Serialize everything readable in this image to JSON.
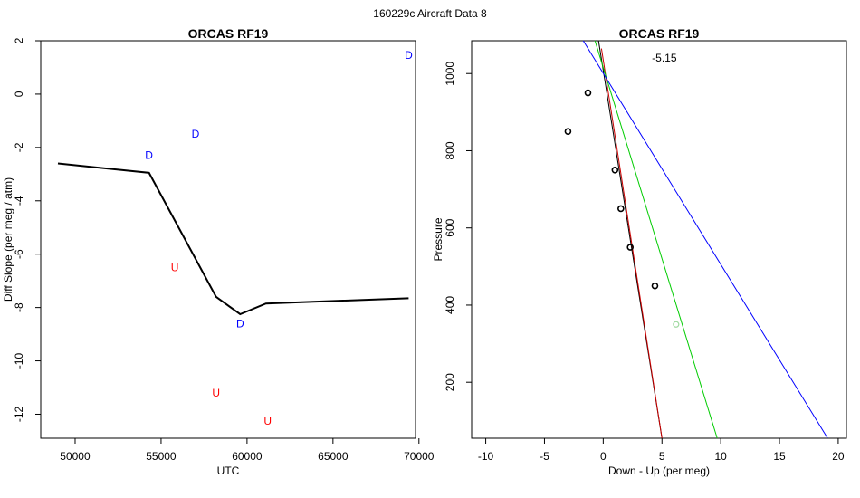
{
  "suptitle": "160229c   Aircraft Data 8",
  "chart_data": [
    {
      "type": "line",
      "title": "ORCAS RF19",
      "xlabel": "UTC",
      "ylabel": "Diff Slope (per meg / atm)",
      "xlim": [
        48000,
        69800
      ],
      "ylim": [
        -12.9,
        2.0
      ],
      "x_ticks": [
        50000,
        55000,
        60000,
        65000,
        70000
      ],
      "y_ticks": [
        2,
        0,
        -2,
        -4,
        -6,
        -8,
        -10,
        -12
      ],
      "series": [
        {
          "name": "diff-slope-line",
          "color": "#000000",
          "x": [
            49000,
            54300,
            58200,
            59600,
            61100,
            69400
          ],
          "y": [
            -2.6,
            -2.95,
            -7.6,
            -8.25,
            -7.85,
            -7.65
          ]
        }
      ],
      "labels": [
        {
          "text": "D",
          "x": 54300,
          "y": -2.3,
          "color": "#0000ff"
        },
        {
          "text": "D",
          "x": 57000,
          "y": -1.5,
          "color": "#0000ff"
        },
        {
          "text": "D",
          "x": 59600,
          "y": -8.6,
          "color": "#0000ff"
        },
        {
          "text": "D",
          "x": 69400,
          "y": 1.45,
          "color": "#0000ff"
        },
        {
          "text": "U",
          "x": 55800,
          "y": -6.5,
          "color": "#ff0000"
        },
        {
          "text": "U",
          "x": 58200,
          "y": -11.2,
          "color": "#ff0000"
        },
        {
          "text": "U",
          "x": 61200,
          "y": -12.25,
          "color": "#ff0000"
        }
      ]
    },
    {
      "type": "scatter",
      "title": "ORCAS RF19",
      "xlabel": "Down - Up (per meg)",
      "ylabel": "Pressure",
      "xlim": [
        -11.2,
        20.7
      ],
      "ylim": [
        1085,
        55
      ],
      "y_reversed": true,
      "x_ticks": [
        -10,
        -5,
        0,
        5,
        10,
        15,
        20
      ],
      "y_ticks": [
        200,
        400,
        600,
        800,
        1000
      ],
      "points": [
        {
          "x": -1.3,
          "y": 950
        },
        {
          "x": -3.0,
          "y": 850
        },
        {
          "x": 1.0,
          "y": 750
        },
        {
          "x": 1.5,
          "y": 650
        },
        {
          "x": 2.3,
          "y": 550
        },
        {
          "x": 4.4,
          "y": 450
        }
      ],
      "points_color": "#000000",
      "outlier": {
        "x": 6.2,
        "y": 350,
        "color": "#9fd9a0"
      },
      "fit_lines": [
        {
          "name": "black-fit",
          "color": "#000000",
          "p1": [
            -0.4,
            1085
          ],
          "p2": [
            5.0,
            55
          ]
        },
        {
          "name": "red-fit",
          "color": "#cc0000",
          "p1": [
            -0.15,
            1065
          ],
          "p2": [
            5.0,
            55
          ]
        },
        {
          "name": "green-fit",
          "color": "#00cc00",
          "p1": [
            -0.7,
            1085
          ],
          "p2": [
            9.7,
            55
          ]
        },
        {
          "name": "blue-fit",
          "color": "#0000ff",
          "p1": [
            -1.7,
            1085
          ],
          "p2": [
            19.1,
            55
          ]
        }
      ],
      "annotation": {
        "text": "-5.15",
        "x": 5.2,
        "y": 1040
      }
    }
  ]
}
